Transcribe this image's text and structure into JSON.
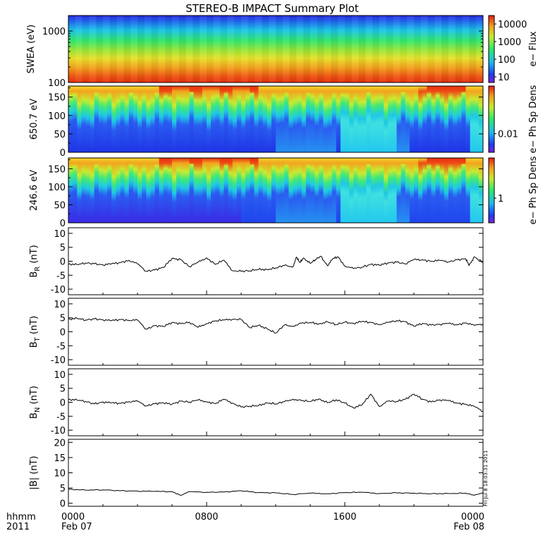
{
  "title": "STEREO-B IMPACT Summary Plot",
  "x_axis": {
    "row1_label": "hhmm",
    "row2_label": "2011",
    "ticks": [
      {
        "hhmm": "0000",
        "date": "Feb 07",
        "hours": 0
      },
      {
        "hhmm": "0800",
        "date": "",
        "hours": 8
      },
      {
        "hhmm": "1600",
        "date": "",
        "hours": 16
      },
      {
        "hhmm": "0000",
        "date": "Feb 08",
        "hours": 24
      }
    ],
    "range_hours": [
      0,
      24
    ]
  },
  "timestamp": "Fri Jul  8 18:03:31 2011",
  "colors": {
    "line": "#000000",
    "spectrogram_low": "#2222dd",
    "spectrogram_high": "#ee3311"
  },
  "chart_data": [
    {
      "id": "swea",
      "type": "heatmap",
      "ylabel": "SWEA (eV)",
      "yscale": "log",
      "ylim": [
        100,
        2000
      ],
      "yticks": [
        "100",
        "1000"
      ],
      "colorbar": {
        "label": "e− Flux",
        "scale": "log",
        "ticks": [
          "10",
          "100",
          "1000",
          "10000"
        ]
      },
      "description_rows": "energy bins from 100 eV (red, high flux) to ~2000 eV (blue, low flux)"
    },
    {
      "id": "pad650",
      "type": "heatmap",
      "ylabel": "650.7 eV",
      "ylim": [
        0,
        180
      ],
      "yticks": [
        "0",
        "50",
        "100",
        "150"
      ],
      "colorbar": {
        "label": "e− Ph Sp Dens",
        "scale": "log",
        "ticks": [
          "0.01"
        ]
      }
    },
    {
      "id": "pad246",
      "type": "heatmap",
      "ylabel": "246.6 eV",
      "ylim": [
        0,
        180
      ],
      "yticks": [
        "0",
        "50",
        "100",
        "150"
      ],
      "colorbar": {
        "label": "e− Ph Sp Dens",
        "scale": "log",
        "ticks": [
          "1"
        ]
      }
    },
    {
      "id": "br",
      "type": "line",
      "ylabel_main": "B",
      "ylabel_sub": "R",
      "ylabel_unit": " (nT)",
      "ylim": [
        -12,
        12
      ],
      "yticks": [
        "10",
        "5",
        "0",
        "-5",
        "-10"
      ],
      "x": [
        0,
        0.5,
        1,
        1.5,
        2,
        2.5,
        3,
        3.5,
        4,
        4.5,
        5,
        5.5,
        6,
        6.5,
        7,
        7.5,
        8,
        8.5,
        9,
        9.5,
        10,
        10.5,
        11,
        11.5,
        12,
        12.5,
        13,
        13.2,
        13.4,
        13.6,
        14,
        14.3,
        14.6,
        15,
        15.3,
        15.6,
        16,
        16.5,
        17,
        17.5,
        18,
        18.5,
        19,
        19.5,
        20,
        20.5,
        21,
        21.5,
        22,
        22.5,
        23,
        23.2,
        23.5,
        24
      ],
      "y": [
        -1,
        -1.2,
        -0.6,
        -0.9,
        -1.3,
        -0.9,
        -0.5,
        0.3,
        -0.9,
        -3.6,
        -3.1,
        -2.2,
        1.0,
        0.6,
        -1.9,
        -0.4,
        1.2,
        -1.1,
        0.4,
        -3.4,
        -3.6,
        -3.4,
        -2.9,
        -3.0,
        -2.4,
        -1.5,
        -2.0,
        1.5,
        -0.5,
        1.2,
        -0.8,
        0.6,
        1.8,
        -1.6,
        0.9,
        1.6,
        -1.7,
        -2.6,
        -2.1,
        -1.1,
        -1.4,
        -0.6,
        -0.3,
        -0.9,
        0.6,
        0.5,
        0.0,
        0.3,
        -0.2,
        0.5,
        0.9,
        -1.5,
        1.6,
        -0.5
      ]
    },
    {
      "id": "bt",
      "type": "line",
      "ylabel_main": "B",
      "ylabel_sub": "T",
      "ylabel_unit": " (nT)",
      "ylim": [
        -12,
        12
      ],
      "yticks": [
        "10",
        "5",
        "0",
        "-5",
        "-10"
      ],
      "x": [
        0,
        0.5,
        1,
        1.5,
        2,
        2.5,
        3,
        3.5,
        4,
        4.5,
        5,
        5.5,
        6,
        6.5,
        7,
        7.5,
        8,
        8.5,
        9,
        9.5,
        10,
        10.5,
        11,
        11.5,
        12,
        12.5,
        13,
        13.5,
        14,
        14.5,
        15,
        15.5,
        16,
        16.5,
        17,
        17.5,
        18,
        18.5,
        19,
        19.5,
        20,
        20.5,
        21,
        21.5,
        22,
        22.5,
        23,
        23.5,
        24
      ],
      "y": [
        4.5,
        4.8,
        4.2,
        4.6,
        4.3,
        4.0,
        4.4,
        4.1,
        4.2,
        0.9,
        2.2,
        1.9,
        3.3,
        2.9,
        3.4,
        1.6,
        2.9,
        3.9,
        4.2,
        4.5,
        4.4,
        1.5,
        2.3,
        1.1,
        -0.5,
        2.4,
        2.0,
        3.1,
        3.3,
        2.8,
        3.5,
        2.6,
        3.4,
        3.0,
        3.7,
        3.3,
        2.6,
        3.3,
        4.0,
        3.6,
        2.0,
        3.0,
        2.4,
        2.7,
        3.0,
        2.5,
        3.2,
        2.3,
        2.8
      ]
    },
    {
      "id": "bn",
      "type": "line",
      "ylabel_main": "B",
      "ylabel_sub": "N",
      "ylabel_unit": " (nT)",
      "ylim": [
        -12,
        12
      ],
      "yticks": [
        "10",
        "5",
        "0",
        "-5",
        "-10"
      ],
      "x": [
        0,
        0.5,
        1,
        1.5,
        2,
        2.5,
        3,
        3.5,
        4,
        4.5,
        5,
        5.5,
        6,
        6.5,
        7,
        7.5,
        8,
        8.5,
        9,
        9.5,
        10,
        10.5,
        11,
        11.5,
        12,
        12.5,
        13,
        13.5,
        14,
        14.5,
        15,
        15.5,
        16,
        16.5,
        17,
        17.5,
        18,
        18.5,
        19,
        19.5,
        20,
        20.5,
        21,
        21.5,
        22,
        22.5,
        23,
        23.5,
        24
      ],
      "y": [
        1.0,
        0.8,
        0.3,
        -0.6,
        0.1,
        -0.2,
        -0.4,
        0.2,
        0.4,
        -1.3,
        -0.5,
        -0.2,
        -0.7,
        0.4,
        0.1,
        0.8,
        0.2,
        -0.5,
        1.1,
        -0.3,
        -1.7,
        -1.4,
        -1.2,
        -0.2,
        -0.6,
        0.2,
        1.1,
        0.6,
        0.3,
        1.2,
        -0.2,
        0.9,
        -0.3,
        -2.0,
        -0.9,
        2.9,
        -1.5,
        0.4,
        0.3,
        1.1,
        2.9,
        1.1,
        0.1,
        0.9,
        0.6,
        -0.3,
        -0.7,
        -1.5,
        -3.2
      ]
    },
    {
      "id": "bmag",
      "type": "line",
      "ylabel": "|B| (nT)",
      "ylim": [
        -1,
        21
      ],
      "yticks": [
        "20",
        "15",
        "10",
        "5",
        "0"
      ],
      "x": [
        0,
        1,
        2,
        3,
        4,
        5,
        6,
        6.5,
        7,
        8,
        9,
        10,
        11,
        12,
        13,
        14,
        15,
        16,
        17,
        18,
        19,
        20,
        21,
        22,
        23,
        23.5,
        24
      ],
      "y": [
        4.6,
        4.3,
        4.4,
        4.1,
        4.0,
        3.9,
        3.8,
        2.6,
        3.8,
        3.6,
        3.7,
        4.1,
        3.5,
        3.4,
        2.9,
        3.3,
        3.1,
        3.5,
        3.6,
        3.2,
        3.4,
        3.3,
        3.1,
        3.2,
        3.3,
        2.6,
        3.5
      ]
    }
  ]
}
